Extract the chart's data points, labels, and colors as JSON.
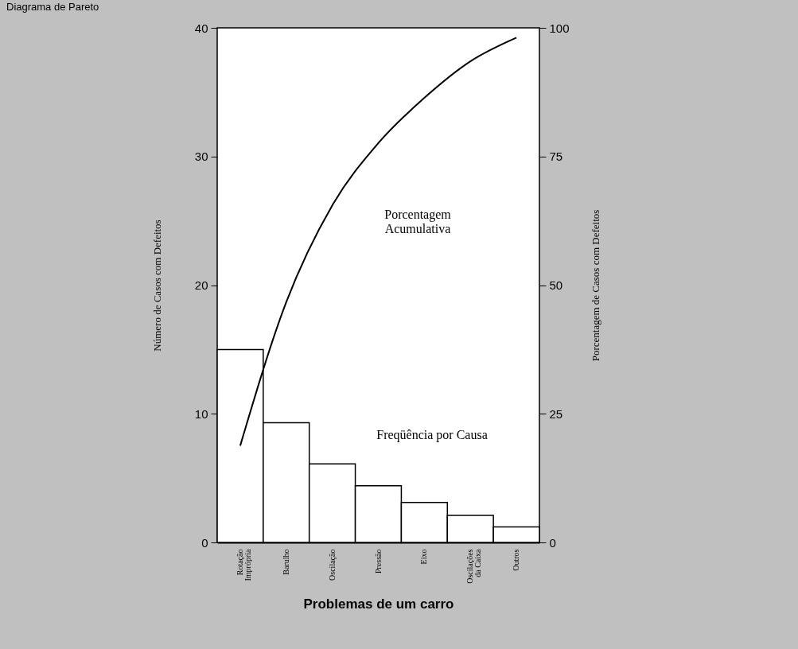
{
  "chart_data": {
    "type": "bar",
    "title": "Diagrama de Pareto",
    "xlabel": "Problemas de um carro",
    "ylabel": "Número de Casos com Defeitos",
    "y2label": "Porcentagem de Casos com Defeitos",
    "categories": [
      "Rotação Imprópria",
      "Barulho",
      "Oscilação",
      "Pressão",
      "Eixo",
      "Oscilações da Caixa",
      "Outros"
    ],
    "series": [
      {
        "color": "#ffffff",
        "values": [
          15,
          9.3,
          6.1,
          4.4,
          3.1,
          2.1,
          1.2
        ]
      },
      {
        "type": "line",
        "axis": "y2",
        "color": "#000000",
        "values": [
          18.8,
          46.7,
          65.5,
          77.6,
          86.4,
          93.5,
          98.1
        ]
      }
    ],
    "ylim": [
      0,
      40
    ],
    "yticks": [
      0,
      10,
      20,
      30,
      40
    ],
    "y2lim": [
      0,
      100
    ],
    "y2ticks": [
      0,
      25,
      50,
      75,
      100
    ],
    "grid": false,
    "annotations": [
      "Porcentagem\nAcumulativa",
      "Freqüência por Causa"
    ]
  }
}
